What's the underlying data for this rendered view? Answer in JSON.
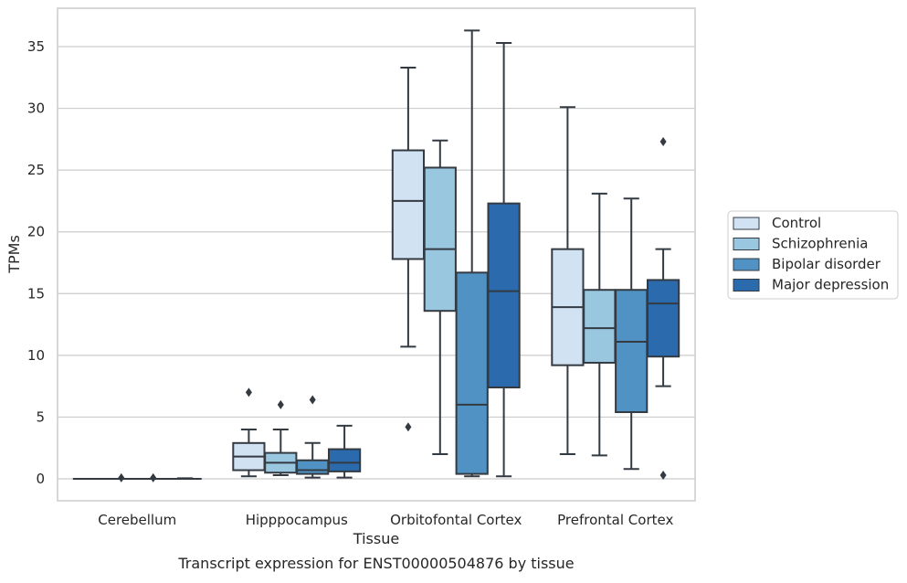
{
  "chart_data": {
    "type": "box",
    "title": "",
    "caption": "Transcript expression for ENST00000504876 by tissue",
    "xlabel": "Tissue",
    "ylabel": "TPMs",
    "ylim": [
      -1.8,
      38
    ],
    "yticks": [
      0,
      5,
      10,
      15,
      20,
      25,
      30,
      35
    ],
    "grid": "horizontal",
    "legend_position": "right",
    "categories": [
      "Cerebellum",
      "Hipppocampus",
      "Orbitofontal Cortex",
      "Prefrontal Cortex"
    ],
    "series": [
      {
        "name": "Control",
        "color": "#d1e2f2",
        "boxes": [
          {
            "whisker_low": 0,
            "q1": 0,
            "median": 0,
            "q3": 0,
            "whisker_high": 0,
            "outliers": []
          },
          {
            "whisker_low": 0.2,
            "q1": 0.7,
            "median": 1.8,
            "q3": 2.9,
            "whisker_high": 4.0,
            "outliers": [
              7.0
            ]
          },
          {
            "whisker_low": 10.7,
            "q1": 17.8,
            "median": 22.5,
            "q3": 26.6,
            "whisker_high": 33.3,
            "outliers": [
              4.2
            ]
          },
          {
            "whisker_low": 2.0,
            "q1": 9.2,
            "median": 13.9,
            "q3": 18.6,
            "whisker_high": 30.1,
            "outliers": []
          }
        ]
      },
      {
        "name": "Schizophrenia",
        "color": "#9ac7e0",
        "boxes": [
          {
            "whisker_low": 0,
            "q1": 0,
            "median": 0,
            "q3": 0,
            "whisker_high": 0,
            "outliers": [
              0.08
            ]
          },
          {
            "whisker_low": 0.3,
            "q1": 0.5,
            "median": 1.3,
            "q3": 2.1,
            "whisker_high": 4.0,
            "outliers": [
              6.0
            ]
          },
          {
            "whisker_low": 2.0,
            "q1": 13.6,
            "median": 18.6,
            "q3": 25.2,
            "whisker_high": 27.4,
            "outliers": []
          },
          {
            "whisker_low": 1.9,
            "q1": 9.4,
            "median": 12.2,
            "q3": 15.3,
            "whisker_high": 23.1,
            "outliers": []
          }
        ]
      },
      {
        "name": "Bipolar disorder",
        "color": "#4f92c3",
        "boxes": [
          {
            "whisker_low": 0,
            "q1": 0,
            "median": 0,
            "q3": 0,
            "whisker_high": 0,
            "outliers": [
              0.08
            ]
          },
          {
            "whisker_low": 0.1,
            "q1": 0.4,
            "median": 0.7,
            "q3": 1.5,
            "whisker_high": 2.9,
            "outliers": [
              6.4
            ]
          },
          {
            "whisker_low": 0.2,
            "q1": 0.4,
            "median": 6.0,
            "q3": 16.7,
            "whisker_high": 36.3,
            "outliers": []
          },
          {
            "whisker_low": 0.8,
            "q1": 5.4,
            "median": 11.1,
            "q3": 15.3,
            "whisker_high": 22.7,
            "outliers": []
          }
        ]
      },
      {
        "name": "Major depression",
        "color": "#2a6aad",
        "boxes": [
          {
            "whisker_low": 0,
            "q1": 0,
            "median": 0,
            "q3": 0,
            "whisker_high": 0.05,
            "outliers": []
          },
          {
            "whisker_low": 0.1,
            "q1": 0.6,
            "median": 1.3,
            "q3": 2.4,
            "whisker_high": 4.3,
            "outliers": []
          },
          {
            "whisker_low": 0.2,
            "q1": 7.4,
            "median": 15.2,
            "q3": 22.3,
            "whisker_high": 35.3,
            "outliers": []
          },
          {
            "whisker_low": 7.5,
            "q1": 9.9,
            "median": 14.2,
            "q3": 16.1,
            "whisker_high": 18.6,
            "outliers": [
              27.3,
              0.3
            ]
          }
        ]
      }
    ]
  }
}
